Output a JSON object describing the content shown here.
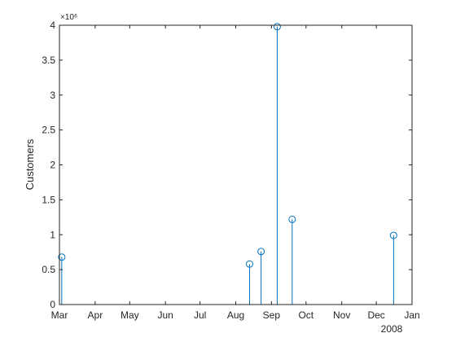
{
  "chart_data": {
    "type": "stem",
    "xlabel": "",
    "ylabel": "Customers",
    "x_axis_type": "datetime",
    "xlim": [
      "2008-03-01",
      "2009-01-01"
    ],
    "x_tick_labels": [
      "Mar",
      "Apr",
      "May",
      "Jun",
      "Jul",
      "Aug",
      "Sep",
      "Oct",
      "Nov",
      "Dec",
      "Jan"
    ],
    "x_secondary_label": "2008",
    "ylim": [
      0,
      4000000
    ],
    "y_tick_labels": [
      "0",
      "0.5",
      "1",
      "1.5",
      "2",
      "2.5",
      "3",
      "3.5",
      "4"
    ],
    "y_exponent_label": "×10⁶",
    "grid": false,
    "series": [
      {
        "color": "#0072BD",
        "marker": "circle-open",
        "points": [
          {
            "x": "2008-03-03",
            "y": 680000
          },
          {
            "x": "2008-08-13",
            "y": 580000
          },
          {
            "x": "2008-08-23",
            "y": 760000
          },
          {
            "x": "2008-09-06",
            "y": 3980000
          },
          {
            "x": "2008-09-19",
            "y": 1220000
          },
          {
            "x": "2008-12-16",
            "y": 990000
          }
        ]
      }
    ]
  }
}
